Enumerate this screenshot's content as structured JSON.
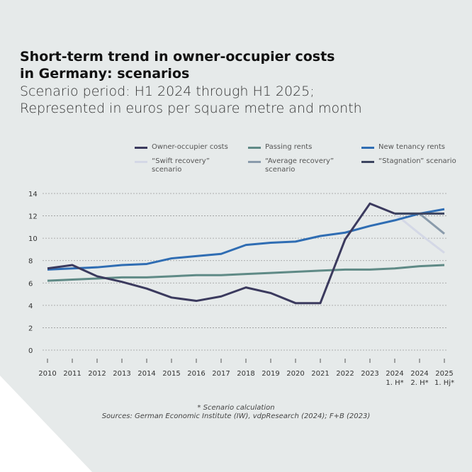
{
  "title_line1": "Short-term trend in owner-occupier costs",
  "title_line2": "in Germany: scenarios",
  "subtitle_line1": "Scenario period: H1 2024 through H1 2025;",
  "subtitle_line2": "Represented in euros per square metre and month",
  "footnote": "* Scenario calculation",
  "sources": "Sources: German Economic Institute (IW), vdpResearch (2024); F+B (2023)",
  "chart_data": {
    "type": "line",
    "categories": [
      "2010",
      "2011",
      "2012",
      "2013",
      "2014",
      "2015",
      "2016",
      "2017",
      "2018",
      "2019",
      "2020",
      "2021",
      "2022",
      "2023",
      "2024\n1. H*",
      "2024\n2. H*",
      "2025\n1. Hj*"
    ],
    "ylim": [
      0,
      14
    ],
    "yticks": [
      0,
      2,
      4,
      6,
      8,
      10,
      12,
      14
    ],
    "grid": true,
    "legend_placement": "top",
    "series": [
      {
        "name": "Owner-occupier costs",
        "color": "#3b3a5e",
        "values": [
          7.3,
          7.6,
          6.6,
          6.1,
          5.5,
          4.7,
          4.4,
          4.8,
          5.6,
          5.1,
          4.2,
          4.2,
          9.9,
          13.1,
          12.2,
          null,
          null
        ]
      },
      {
        "name": "Passing rents",
        "color": "#5f8a86",
        "values": [
          6.2,
          6.3,
          6.4,
          6.5,
          6.5,
          6.6,
          6.7,
          6.7,
          6.8,
          6.9,
          7.0,
          7.1,
          7.2,
          7.2,
          7.3,
          7.5,
          7.6
        ]
      },
      {
        "name": "New tenancy rents",
        "color": "#2f6db3",
        "values": [
          7.2,
          7.3,
          7.4,
          7.6,
          7.7,
          8.2,
          8.4,
          8.6,
          9.4,
          9.6,
          9.7,
          10.2,
          10.5,
          11.1,
          11.6,
          12.2,
          12.6
        ]
      },
      {
        "name": "“Swift recovery” scenario",
        "color": "#d4d8e6",
        "values": [
          null,
          null,
          null,
          null,
          null,
          null,
          null,
          null,
          null,
          null,
          null,
          null,
          null,
          null,
          12.2,
          10.4,
          8.7
        ]
      },
      {
        "name": "“Average recovery” scenario",
        "color": "#8a9bab",
        "values": [
          null,
          null,
          null,
          null,
          null,
          null,
          null,
          null,
          null,
          null,
          null,
          null,
          null,
          null,
          12.2,
          12.2,
          10.4
        ]
      },
      {
        "name": "“Stagnation” scenario",
        "color": "#3d4560",
        "values": [
          null,
          null,
          null,
          null,
          null,
          null,
          null,
          null,
          null,
          null,
          null,
          null,
          null,
          null,
          12.2,
          12.2,
          12.2
        ]
      }
    ]
  }
}
